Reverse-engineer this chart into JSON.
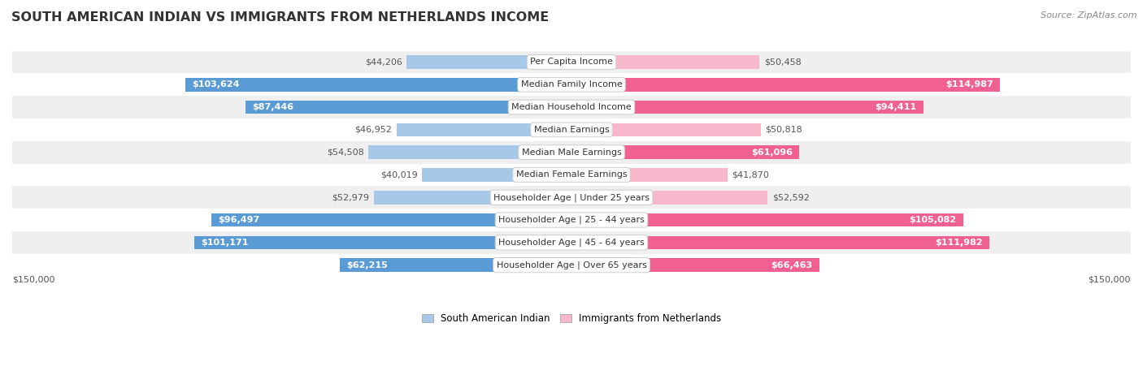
{
  "title": "SOUTH AMERICAN INDIAN VS IMMIGRANTS FROM NETHERLANDS INCOME",
  "source": "Source: ZipAtlas.com",
  "categories": [
    "Per Capita Income",
    "Median Family Income",
    "Median Household Income",
    "Median Earnings",
    "Median Male Earnings",
    "Median Female Earnings",
    "Householder Age | Under 25 years",
    "Householder Age | 25 - 44 years",
    "Householder Age | 45 - 64 years",
    "Householder Age | Over 65 years"
  ],
  "left_values": [
    44206,
    103624,
    87446,
    46952,
    54508,
    40019,
    52979,
    96497,
    101171,
    62215
  ],
  "right_values": [
    50458,
    114987,
    94411,
    50818,
    61096,
    41870,
    52592,
    105082,
    111982,
    66463
  ],
  "left_labels": [
    "$44,206",
    "$103,624",
    "$87,446",
    "$46,952",
    "$54,508",
    "$40,019",
    "$52,979",
    "$96,497",
    "$101,171",
    "$62,215"
  ],
  "right_labels": [
    "$50,458",
    "$114,987",
    "$94,411",
    "$50,818",
    "$61,096",
    "$41,870",
    "$52,592",
    "$105,082",
    "$111,982",
    "$66,463"
  ],
  "left_color_light": "#a8c8e8",
  "left_color_dark": "#5b9bd5",
  "right_color_light": "#f8b8cc",
  "right_color_dark": "#f06090",
  "label_color_inside": "#ffffff",
  "label_color_outside": "#555555",
  "max_value": 150000,
  "inside_threshold": 60000,
  "legend_left": "South American Indian",
  "legend_right": "Immigrants from Netherlands",
  "background_row_odd": "#efefef",
  "background_row_even": "#ffffff",
  "bar_height": 0.6,
  "title_fontsize": 11.5,
  "label_fontsize": 8,
  "category_fontsize": 8,
  "source_fontsize": 8,
  "axis_label": "$150,000"
}
